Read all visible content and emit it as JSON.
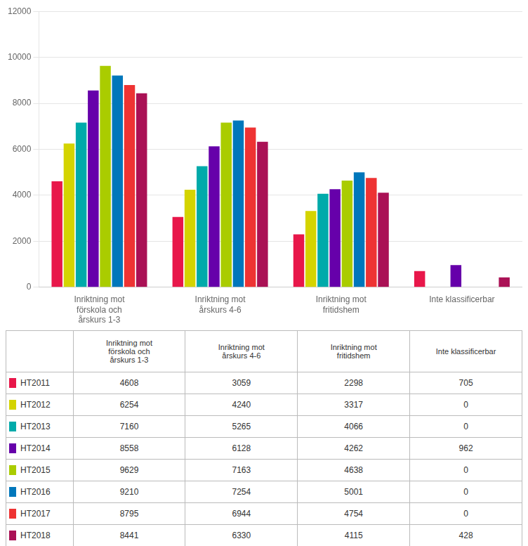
{
  "chart_data": {
    "type": "bar",
    "categories": [
      "Inriktning mot\nförskola och\nårskurs 1-3",
      "Inriktning mot\nårskurs 4-6",
      "Inriktning mot\nfritidshem",
      "Inte klassificerbar"
    ],
    "series": [
      {
        "name": "HT2011",
        "color": "#E8174A",
        "values": [
          4608,
          3059,
          2298,
          705
        ]
      },
      {
        "name": "HT2012",
        "color": "#D4D400",
        "values": [
          6254,
          4240,
          3317,
          0
        ]
      },
      {
        "name": "HT2013",
        "color": "#00AAAA",
        "values": [
          7160,
          5265,
          4066,
          0
        ]
      },
      {
        "name": "HT2014",
        "color": "#6600AA",
        "values": [
          8558,
          6128,
          4262,
          962
        ]
      },
      {
        "name": "HT2015",
        "color": "#AACC00",
        "values": [
          9629,
          7163,
          4638,
          0
        ]
      },
      {
        "name": "HT2016",
        "color": "#0077BB",
        "values": [
          9210,
          7254,
          5001,
          0
        ]
      },
      {
        "name": "HT2017",
        "color": "#EE3333",
        "values": [
          8795,
          6944,
          4754,
          0
        ]
      },
      {
        "name": "HT2018",
        "color": "#AA1155",
        "values": [
          8441,
          6330,
          4115,
          428
        ]
      }
    ],
    "ylim": [
      0,
      12000
    ],
    "yticks": [
      0,
      2000,
      4000,
      6000,
      8000,
      10000,
      12000
    ],
    "grid": true
  }
}
